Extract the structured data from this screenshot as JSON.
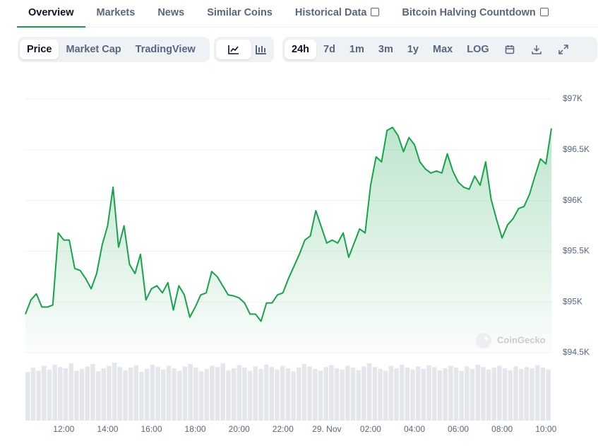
{
  "tabs": [
    "Overview",
    "Markets",
    "News",
    "Similar Coins",
    "Historical Data",
    "Bitcoin Halving Countdown"
  ],
  "chart_modes": [
    "Price",
    "Market Cap",
    "TradingView"
  ],
  "ranges": [
    "24h",
    "7d",
    "1m",
    "3m",
    "1y",
    "Max",
    "LOG"
  ],
  "chart_data": {
    "type": "line",
    "watermark": "CoinGecko",
    "color": "#16a34a",
    "grid": true,
    "x": [
      10.25,
      10.5,
      10.75,
      11,
      11.25,
      11.5,
      11.75,
      12,
      12.25,
      12.5,
      12.75,
      13,
      13.25,
      13.5,
      13.75,
      14,
      14.25,
      14.5,
      14.75,
      15,
      15.25,
      15.5,
      15.75,
      16,
      16.25,
      16.5,
      16.75,
      17,
      17.25,
      17.5,
      17.75,
      18,
      18.25,
      18.5,
      18.75,
      19,
      19.25,
      19.5,
      19.75,
      20,
      20.25,
      20.5,
      20.75,
      21,
      21.25,
      21.5,
      21.75,
      22,
      22.25,
      22.5,
      22.75,
      23,
      23.25,
      23.5,
      23.75,
      24,
      24.25,
      24.5,
      24.75,
      25,
      25.25,
      25.5,
      25.75,
      26,
      26.25,
      26.5,
      26.75,
      27,
      27.25,
      27.5,
      27.75,
      28,
      28.25,
      28.5,
      28.75,
      29,
      29.25,
      29.5,
      29.75,
      30,
      30.25,
      30.5,
      30.75,
      31,
      31.25,
      31.5,
      31.75,
      32,
      32.25,
      32.5,
      32.75,
      33,
      33.25,
      33.5,
      33.75,
      34,
      34.25
    ],
    "values": [
      94880,
      95020,
      95080,
      94950,
      94950,
      94970,
      95680,
      95610,
      95610,
      95330,
      95310,
      95230,
      95130,
      95280,
      95560,
      95750,
      96130,
      95540,
      95750,
      95370,
      95280,
      95470,
      95020,
      95130,
      95160,
      95090,
      95190,
      94920,
      95160,
      95070,
      94850,
      94950,
      95070,
      95090,
      95300,
      95250,
      95160,
      95070,
      95060,
      95040,
      94990,
      94880,
      94880,
      94810,
      94990,
      94990,
      95070,
      95090,
      95230,
      95350,
      95470,
      95610,
      95650,
      95900,
      95740,
      95580,
      95610,
      95580,
      95680,
      95440,
      95580,
      95720,
      95680,
      96150,
      96430,
      96380,
      96690,
      96720,
      96640,
      96480,
      96620,
      96550,
      96380,
      96310,
      96270,
      96290,
      96270,
      96460,
      96290,
      96180,
      96130,
      96110,
      96240,
      96150,
      96380,
      96010,
      95810,
      95630,
      95760,
      95820,
      95920,
      95940,
      96060,
      96240,
      96410,
      96360,
      96710
    ],
    "volume": [
      78,
      85,
      80,
      88,
      82,
      90,
      86,
      84,
      92,
      80,
      83,
      87,
      91,
      79,
      84,
      88,
      93,
      86,
      81,
      85,
      89,
      78,
      83,
      90,
      86,
      82,
      88,
      84,
      80,
      87,
      91,
      85,
      79,
      83,
      88,
      86,
      92,
      81,
      84,
      89,
      85,
      80,
      87,
      83,
      90,
      86,
      82,
      88,
      84,
      79,
      85,
      91,
      87,
      83,
      80,
      86,
      89,
      84,
      82,
      88,
      85,
      81,
      87,
      92,
      86,
      83,
      80,
      88,
      84,
      90,
      85,
      82,
      87,
      83,
      89,
      86,
      81,
      84,
      88,
      85,
      80,
      87,
      83,
      90,
      86,
      82,
      85,
      88,
      84,
      81,
      87,
      83,
      86,
      84,
      89,
      85,
      82
    ],
    "volume_color": "#e3e6ea",
    "volume_ylim": [
      0,
      100
    ],
    "xlim": [
      10.25,
      34.25
    ],
    "xticks": [
      {
        "value": 12,
        "label": "12:00"
      },
      {
        "value": 14,
        "label": "14:00"
      },
      {
        "value": 16,
        "label": "16:00"
      },
      {
        "value": 18,
        "label": "18:00"
      },
      {
        "value": 20,
        "label": "20:00"
      },
      {
        "value": 22,
        "label": "22:00"
      },
      {
        "value": 24,
        "label": "29. Nov"
      },
      {
        "value": 26,
        "label": "02:00"
      },
      {
        "value": 28,
        "label": "04:00"
      },
      {
        "value": 30,
        "label": "06:00"
      },
      {
        "value": 32,
        "label": "08:00"
      },
      {
        "value": 34,
        "label": "10:00"
      }
    ],
    "ylim": [
      94500,
      97000
    ],
    "yticks": [
      {
        "value": 94500,
        "label": "$94.5K"
      },
      {
        "value": 95000,
        "label": "$95K"
      },
      {
        "value": 95500,
        "label": "$95.5K"
      },
      {
        "value": 96000,
        "label": "$96K"
      },
      {
        "value": 96500,
        "label": "$96.5K"
      },
      {
        "value": 97000,
        "label": "$97K"
      }
    ]
  }
}
